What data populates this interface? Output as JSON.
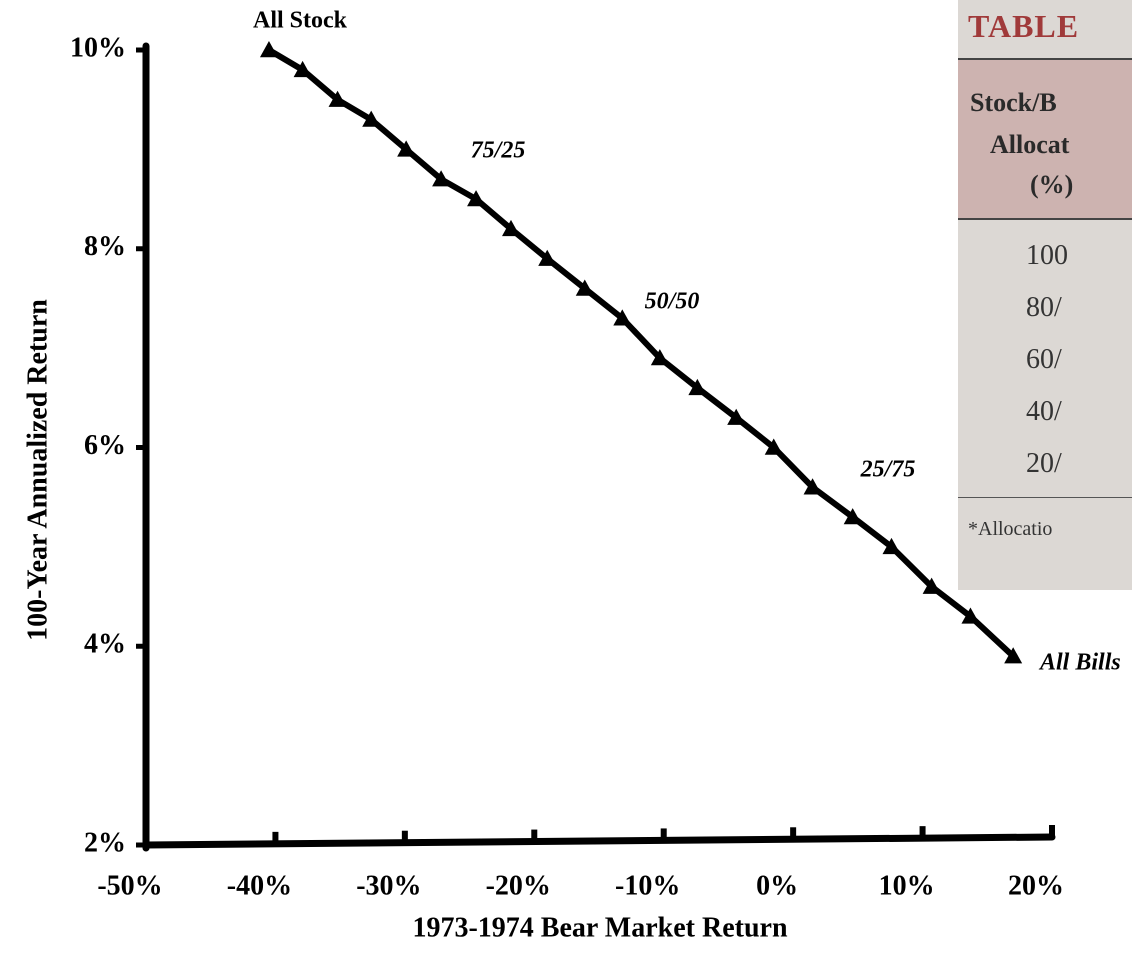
{
  "chart_data": {
    "type": "line",
    "x_label": "1973-1974 Bear Market Return",
    "y_label": "100-Year Annualized Return",
    "x": [
      -40.5,
      -37.9,
      -35.2,
      -32.6,
      -29.9,
      -27.2,
      -24.5,
      -21.8,
      -19.0,
      -16.1,
      -13.2,
      -10.3,
      -7.4,
      -4.4,
      -1.5,
      1.5,
      4.6,
      7.6,
      10.7,
      13.7,
      17.0
    ],
    "values": [
      10.0,
      9.8,
      9.5,
      9.3,
      9.0,
      8.7,
      8.5,
      8.2,
      7.9,
      7.6,
      7.3,
      6.9,
      6.6,
      6.3,
      6.0,
      5.6,
      5.3,
      5.0,
      4.6,
      4.3,
      3.9
    ],
    "color": "#000000",
    "marker": "triangle",
    "xlim": [
      -50,
      20
    ],
    "xticks": [
      {
        "value": -50,
        "label": "-50%"
      },
      {
        "value": -40,
        "label": "-40%"
      },
      {
        "value": -30,
        "label": "-30%"
      },
      {
        "value": -20,
        "label": "-20%"
      },
      {
        "value": -10,
        "label": "-10%"
      },
      {
        "value": 0,
        "label": "0%"
      },
      {
        "value": 10,
        "label": "10%"
      },
      {
        "value": 20,
        "label": "20%"
      }
    ],
    "ylim": [
      2,
      10
    ],
    "yticks": [
      {
        "value": 2,
        "label": "2%"
      },
      {
        "value": 4,
        "label": "4%"
      },
      {
        "value": 6,
        "label": "6%"
      },
      {
        "value": 8,
        "label": "8%"
      },
      {
        "value": 10,
        "label": "10%"
      }
    ],
    "grid": false,
    "annotations": [
      "All Stock",
      "75/25",
      "50/50",
      "25/75",
      "All Bills"
    ]
  },
  "inset_table": {
    "title": "TABLE",
    "header": [
      "Stock/B",
      "Allocat",
      "(%)"
    ],
    "rows": [
      "100",
      "80/",
      "60/",
      "40/",
      "20/"
    ],
    "footnote": "*Allocatio"
  }
}
